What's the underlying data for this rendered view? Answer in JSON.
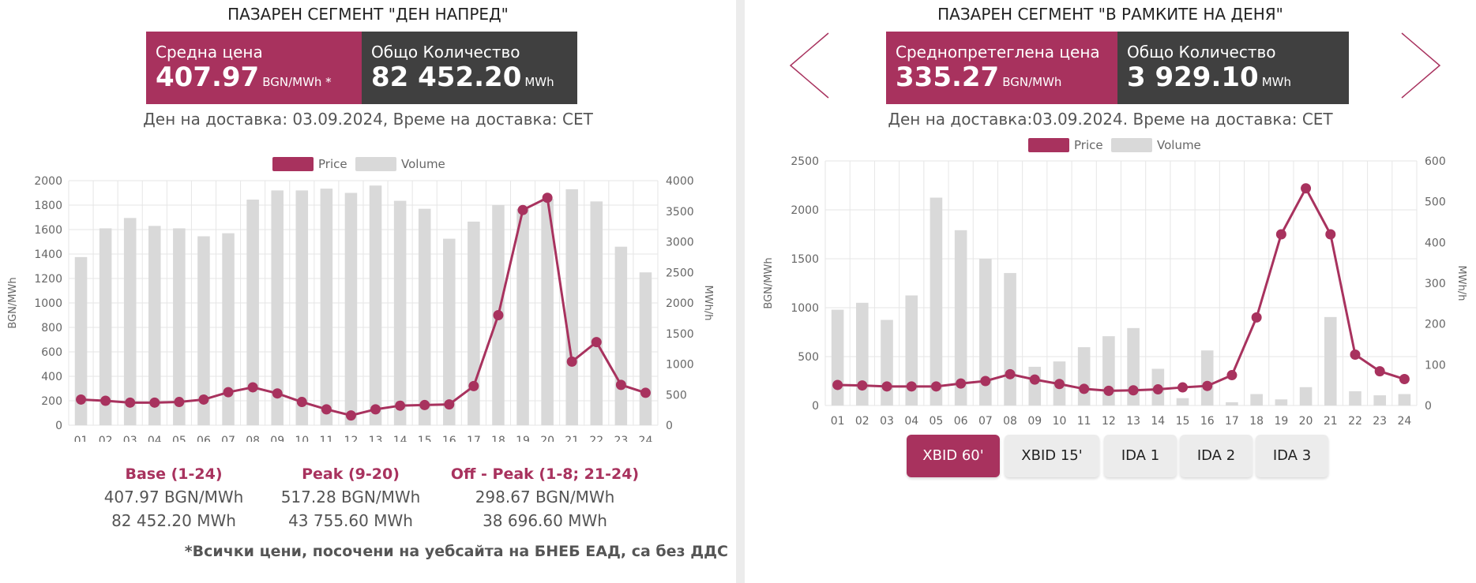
{
  "left": {
    "title": "ПАЗАРЕН СЕГМЕНТ \"ДЕН НАПРЕД\"",
    "box1_label": "Средна цена",
    "box1_value": "407.97",
    "box1_unit": "BGN/MWh *",
    "box2_label": "Общо Количество",
    "box2_value": "82 452.20",
    "box2_unit": "MWh",
    "delivery": "Ден на доставка: 03.09.2024, Време на доставка: CET",
    "stats": [
      {
        "heading": "Base (1-24)",
        "price": "407.97 BGN/MWh",
        "volume": "82 452.20 MWh"
      },
      {
        "heading": "Peak (9-20)",
        "price": "517.28 BGN/MWh",
        "volume": "43 755.60 MWh"
      },
      {
        "heading": "Off - Peak (1-8; 21-24)",
        "price": "298.67 BGN/MWh",
        "volume": "38 696.60 MWh"
      }
    ],
    "footnote": "*Всички цени, посочени на уебсайта на БНЕБ ЕАД, са без ДДС"
  },
  "right": {
    "title": "ПАЗАРЕН СЕГМЕНТ \"В РАМКИТЕ НА ДЕНЯ\"",
    "box1_label": "Среднопретеглена цена",
    "box1_value": "335.27",
    "box1_unit": "BGN/MWh",
    "box2_label": "Общо Количество",
    "box2_value": "3 929.10",
    "box2_unit": "MWh",
    "delivery": "Ден на доставка:03.09.2024. Време на доставка: CET",
    "tabs": [
      "XBID 60'",
      "XBID 15'",
      "IDA 1",
      "IDA 2",
      "IDA 3"
    ],
    "active_tab": 0
  },
  "colors": {
    "accent": "#a8325e",
    "dark": "#404040",
    "bar": "#d9d9d9",
    "grid": "#e6e6e6"
  },
  "chart_data": [
    {
      "type": "bar",
      "categories": [
        "01",
        "02",
        "03",
        "04",
        "05",
        "06",
        "07",
        "08",
        "09",
        "10",
        "11",
        "12",
        "13",
        "14",
        "15",
        "16",
        "17",
        "18",
        "19",
        "20",
        "21",
        "22",
        "23",
        "24"
      ],
      "series": [
        {
          "name": "Price",
          "type": "line",
          "axis": "left",
          "values": [
            210,
            200,
            185,
            185,
            190,
            210,
            270,
            310,
            260,
            190,
            130,
            80,
            130,
            160,
            165,
            170,
            320,
            900,
            1760,
            1860,
            520,
            680,
            330,
            265
          ]
        },
        {
          "name": "Volume",
          "type": "bar",
          "axis": "right",
          "values": [
            2750,
            3220,
            3390,
            3260,
            3220,
            3090,
            3140,
            3690,
            3840,
            3840,
            3870,
            3800,
            3920,
            3670,
            3540,
            3050,
            3330,
            3600,
            3540,
            3700,
            3860,
            3660,
            2920,
            2500
          ]
        }
      ],
      "ylabel": "BGN/MWh",
      "y2label": "MWh/h",
      "ylim": [
        0,
        2000
      ],
      "y2lim": [
        0,
        4000
      ],
      "yticks": [
        "0",
        "200",
        "400",
        "600",
        "800",
        "1000",
        "1200",
        "1400",
        "1600",
        "1800",
        "2000"
      ],
      "y2ticks": [
        "0",
        "500",
        "1000",
        "1500",
        "2000",
        "2500",
        "3000",
        "3500",
        "4000"
      ],
      "legend": "top",
      "grid": true
    },
    {
      "type": "bar",
      "categories": [
        "01",
        "02",
        "03",
        "04",
        "05",
        "06",
        "07",
        "08",
        "09",
        "10",
        "11",
        "12",
        "13",
        "14",
        "15",
        "16",
        "17",
        "18",
        "19",
        "20",
        "21",
        "22",
        "23",
        "24"
      ],
      "series": [
        {
          "name": "Price",
          "type": "line",
          "axis": "left",
          "values": [
            210,
            205,
            195,
            195,
            195,
            225,
            250,
            320,
            265,
            220,
            170,
            150,
            155,
            165,
            185,
            200,
            310,
            900,
            1750,
            2220,
            1750,
            520,
            350,
            270
          ]
        },
        {
          "name": "Volume",
          "type": "bar",
          "axis": "right",
          "values": [
            235,
            252,
            210,
            270,
            510,
            430,
            360,
            325,
            95,
            108,
            143,
            170,
            190,
            90,
            18,
            135,
            8,
            28,
            15,
            45,
            217,
            35,
            25,
            28
          ]
        }
      ],
      "ylabel": "BGN/MWh",
      "y2label": "MWh/h",
      "ylim": [
        0,
        2500
      ],
      "y2lim": [
        0,
        600
      ],
      "yticks": [
        "0",
        "500",
        "1000",
        "1500",
        "2000",
        "2500"
      ],
      "y2ticks": [
        "0",
        "100",
        "200",
        "300",
        "400",
        "500",
        "600"
      ],
      "legend": "top",
      "grid": true
    }
  ]
}
